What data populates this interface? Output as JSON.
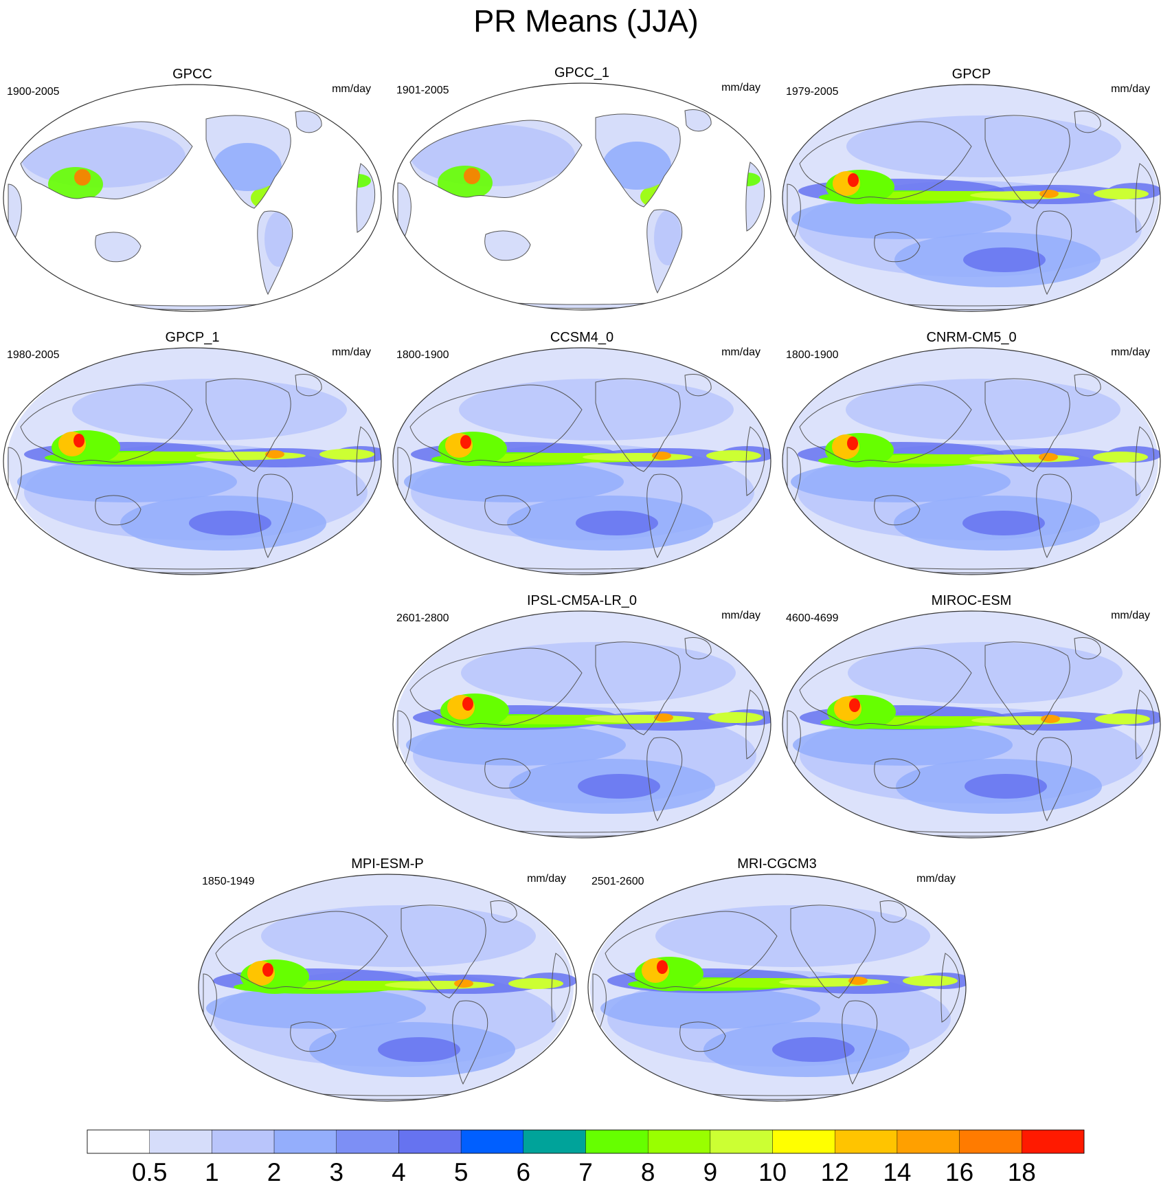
{
  "title": "PR Means (JJA)",
  "units": "mm/day",
  "colorbar": {
    "labels": [
      "0.5",
      "1",
      "2",
      "3",
      "4",
      "5",
      "6",
      "7",
      "8",
      "9",
      "10",
      "12",
      "14",
      "16",
      "18"
    ],
    "colors": [
      "#ffffff",
      "#d6ddfa",
      "#b9c5fb",
      "#94aefc",
      "#7d8ff5",
      "#6673f0",
      "#005fff",
      "#00a39a",
      "#66ff00",
      "#99ff00",
      "#ccff33",
      "#ffff00",
      "#ffc400",
      "#ffa000",
      "#ff7b00",
      "#ff1a00"
    ]
  },
  "panels": [
    {
      "name": "GPCC",
      "period": "1900-2005",
      "land_only": true
    },
    {
      "name": "GPCC_1",
      "period": "1901-2005",
      "land_only": true
    },
    {
      "name": "GPCP",
      "period": "1979-2005",
      "land_only": false
    },
    {
      "name": "GPCP_1",
      "period": "1980-2005",
      "land_only": false
    },
    {
      "name": "CCSM4_0",
      "period": "1800-1900",
      "land_only": false
    },
    {
      "name": "CNRM-CM5_0",
      "period": "1800-1900",
      "land_only": false
    },
    {
      "name": "IPSL-CM5A-LR_0",
      "period": "2601-2800",
      "land_only": false
    },
    {
      "name": "MIROC-ESM",
      "period": "4600-4699",
      "land_only": false
    },
    {
      "name": "MPI-ESM-P",
      "period": "1850-1949",
      "land_only": false
    },
    {
      "name": "MRI-CGCM3",
      "period": "2501-2600",
      "land_only": false
    }
  ]
}
